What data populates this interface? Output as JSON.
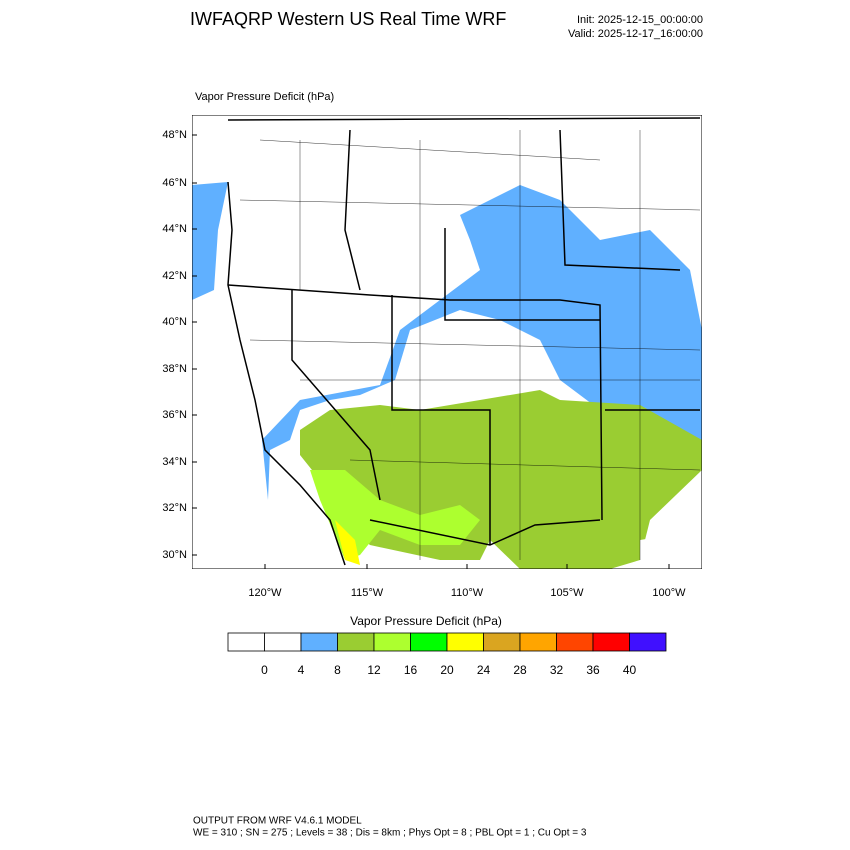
{
  "header": {
    "title": "IWFAQRP Western US Real Time WRF",
    "init": "Init: 2025-12-15_00:00:00",
    "valid": "Valid: 2025-12-17_16:00:00"
  },
  "map": {
    "field_title": "Vapor Pressure Deficit   (hPa)",
    "lat_labels": [
      "48°N",
      "46°N",
      "44°N",
      "42°N",
      "40°N",
      "38°N",
      "36°N",
      "34°N",
      "32°N",
      "30°N"
    ],
    "lon_labels": [
      "120°W",
      "115°W",
      "110°W",
      "105°W",
      "100°W"
    ]
  },
  "colorbar": {
    "title": "Vapor Pressure Deficit  (hPa)",
    "levels": [
      0,
      4,
      8,
      12,
      16,
      20,
      24,
      28,
      32,
      36,
      40
    ],
    "colors": [
      "#ffffff",
      "#ffffff",
      "#60b0ff",
      "#9acd32",
      "#adff2f",
      "#00ff00",
      "#ffff00",
      "#daa520",
      "#ffa500",
      "#ff4500",
      "#ff0000",
      "#4010ff"
    ]
  },
  "footer": {
    "line1": "OUTPUT FROM WRF V4.6.1 MODEL",
    "line2": "WE = 310 ; SN = 275 ; Levels = 38 ; Dis = 8km ; Phys Opt = 8 ; PBL Opt = 1 ; Cu Opt = 3"
  }
}
